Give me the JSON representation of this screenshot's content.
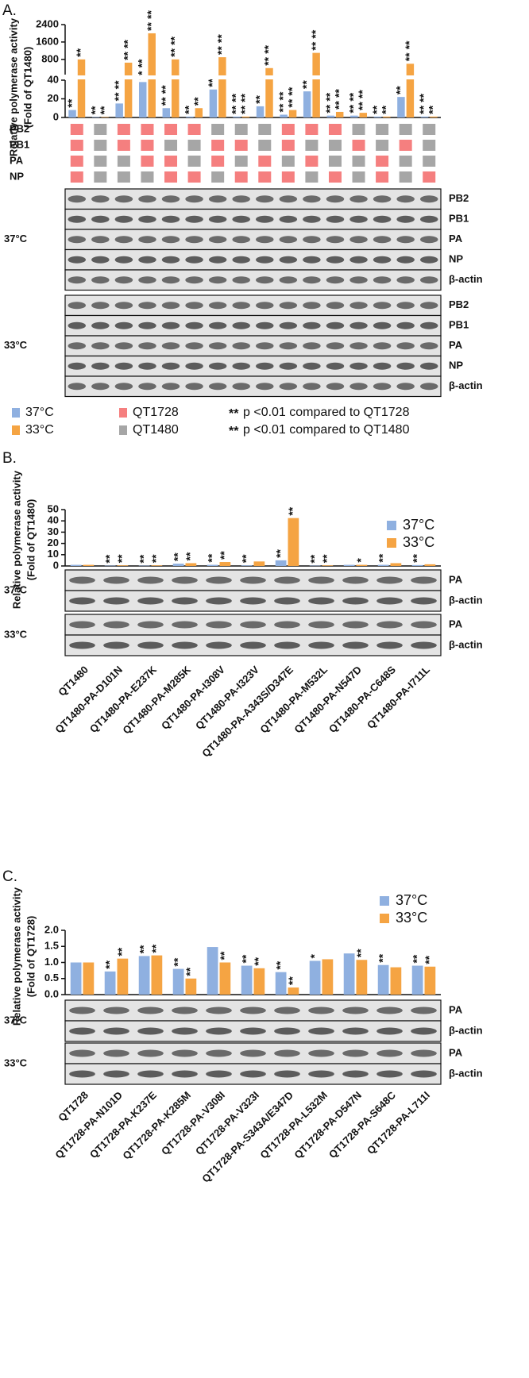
{
  "chart_data": [
    {
      "type": "bar",
      "panel_label": "A.",
      "ylabel": [
        "Relative polymerase activity",
        "(Fold of QT1480)"
      ],
      "ylim": [
        0,
        2400
      ],
      "ybreak": [
        40,
        100
      ],
      "yticks": [
        0,
        20,
        40,
        800,
        1600,
        2400
      ],
      "series": [
        {
          "name": "37°C",
          "color": "#8fb0e0",
          "values": [
            8,
            0.5,
            15,
            38,
            10,
            1,
            30,
            1,
            12,
            3,
            28,
            2,
            2,
            1,
            22,
            1
          ],
          "sig_qt1480": [
            "**",
            null,
            "**",
            "**",
            "**",
            "**",
            "**",
            "**",
            "**",
            "**",
            "**",
            "**",
            "**",
            null,
            "**",
            "**"
          ],
          "sig_qt1728": [
            null,
            "**",
            "**",
            "**",
            "**",
            null,
            null,
            "**",
            null,
            "**",
            null,
            "**",
            "**",
            "**",
            null,
            "**"
          ]
        },
        {
          "name": "33°C",
          "color": "#f5a443",
          "values": [
            800,
            0.5,
            650,
            2000,
            800,
            10,
            900,
            1,
            400,
            8,
            1100,
            6,
            5,
            1,
            600,
            1
          ],
          "sig_qt1480": [
            "**",
            null,
            "**",
            "**",
            "**",
            null,
            "**",
            "**",
            "**",
            "**",
            "**",
            "**",
            "**",
            null,
            "**",
            null
          ],
          "sig_qt1728": [
            null,
            "**",
            "**",
            "**",
            "**",
            "**",
            "**",
            "**",
            "**",
            "**",
            "**",
            "**",
            "**",
            "**",
            "**",
            "**"
          ]
        }
      ],
      "origins": [
        {
          "name": "QT1728",
          "color": "#f57f7f"
        },
        {
          "name": "QT1480",
          "color": "#a6a6a6"
        }
      ],
      "segments": [
        "PB2",
        "PB1",
        "PA",
        "NP"
      ],
      "segment_matrix": [
        [
          "QT1728",
          "QT1480",
          "QT1728",
          "QT1728",
          "QT1728",
          "QT1728",
          "QT1480",
          "QT1480",
          "QT1480",
          "QT1728",
          "QT1728",
          "QT1728",
          "QT1480",
          "QT1480",
          "QT1480",
          "QT1480"
        ],
        [
          "QT1728",
          "QT1480",
          "QT1728",
          "QT1728",
          "QT1480",
          "QT1480",
          "QT1728",
          "QT1728",
          "QT1480",
          "QT1728",
          "QT1480",
          "QT1480",
          "QT1728",
          "QT1480",
          "QT1728",
          "QT1480"
        ],
        [
          "QT1728",
          "QT1480",
          "QT1480",
          "QT1728",
          "QT1728",
          "QT1480",
          "QT1728",
          "QT1480",
          "QT1728",
          "QT1480",
          "QT1728",
          "QT1480",
          "QT1480",
          "QT1728",
          "QT1480",
          "QT1480"
        ],
        [
          "QT1728",
          "QT1480",
          "QT1480",
          "QT1480",
          "QT1728",
          "QT1728",
          "QT1480",
          "QT1728",
          "QT1728",
          "QT1728",
          "QT1480",
          "QT1728",
          "QT1480",
          "QT1728",
          "QT1480",
          "QT1728"
        ]
      ],
      "significance": [
        {
          "symbol": "**",
          "color": "#f57f7f",
          "label": "p <0.01 compared to QT1728"
        },
        {
          "symbol": "**",
          "color": "#222222",
          "label": "p <0.01 compared to QT1480"
        }
      ],
      "blots": [
        {
          "temperature": "37°C",
          "rows": [
            "PB2",
            "PB1",
            "PA",
            "NP",
            "β-actin"
          ]
        },
        {
          "temperature": "33°C",
          "rows": [
            "PB2",
            "PB1",
            "PA",
            "NP",
            "β-actin"
          ]
        }
      ]
    },
    {
      "type": "bar",
      "panel_label": "B.",
      "ylabel": [
        "Relative polymerase activity",
        "(Fold of QT1480)"
      ],
      "ylim": [
        0,
        50
      ],
      "yticks": [
        0,
        10,
        20,
        30,
        40,
        50
      ],
      "categories": [
        "QT1480",
        "QT1480-PA-D101N",
        "QT1480-PA-E237K",
        "QT1480-PA-M285K",
        "QT1480-PA-I308V",
        "QT1480-PA-I323V",
        "QT1480-PA-A343S/D347E",
        "QT1480-PA-M532L",
        "QT1480-PA-N547D",
        "QT1480-PA-C648S",
        "QT1480-PA-I711L"
      ],
      "series": [
        {
          "name": "37°C",
          "color": "#8fb0e0",
          "values": [
            1,
            0.3,
            0.3,
            2,
            1,
            0.5,
            5,
            0.3,
            1,
            1,
            0.8
          ],
          "annotations": [
            null,
            "**",
            "**",
            "**",
            "**",
            "**",
            "**",
            "**",
            null,
            "**",
            "**"
          ]
        },
        {
          "name": "33°C",
          "color": "#f5a443",
          "values": [
            1,
            0.5,
            0.5,
            2.5,
            3.5,
            4,
            42.5,
            0.5,
            1,
            2.5,
            1.5
          ],
          "annotations": [
            null,
            "**",
            "**",
            "**",
            "**",
            null,
            "**",
            "**",
            "*",
            null,
            null
          ]
        }
      ],
      "blots": [
        {
          "temperature": "37°C",
          "rows": [
            "PA",
            "β-actin"
          ]
        },
        {
          "temperature": "33°C",
          "rows": [
            "PA",
            "β-actin"
          ]
        }
      ]
    },
    {
      "type": "bar",
      "panel_label": "C.",
      "ylabel": [
        "Relative polymerase activity",
        "(Fold of QT1728)"
      ],
      "ylim": [
        0,
        2
      ],
      "yticks": [
        {
          "value": 0,
          "label": "0.0"
        },
        0.5,
        {
          "value": 1,
          "label": "1.0"
        },
        1.5,
        {
          "value": 2,
          "label": "2.0"
        }
      ],
      "categories": [
        "QT1728",
        "QT1728-PA-N101D",
        "QT1728-PA-K237E",
        "QT1728-PA-K285M",
        "QT1728-PA-V308I",
        "QT1728-PA-V323I",
        "QT1728-PA-S343A/E347D",
        "QT1728-PA-L532M",
        "QT1728-PA-D547N",
        "QT1728-PA-S648C",
        "QT1728-PA-L711I"
      ],
      "series": [
        {
          "name": "37°C",
          "color": "#8fb0e0",
          "values": [
            1.0,
            0.72,
            1.2,
            0.8,
            1.48,
            0.9,
            0.7,
            1.05,
            1.28,
            0.92,
            0.9
          ],
          "annotations": [
            null,
            "**",
            "**",
            "**",
            null,
            "**",
            "**",
            "*",
            null,
            "**",
            "**"
          ]
        },
        {
          "name": "33°C",
          "color": "#f5a443",
          "values": [
            1.0,
            1.12,
            1.22,
            0.5,
            1.0,
            0.82,
            0.22,
            1.1,
            1.08,
            0.85,
            0.87
          ],
          "annotations": [
            null,
            "**",
            "**",
            "**",
            "**",
            "**",
            "**",
            null,
            "**",
            null,
            "**"
          ]
        }
      ],
      "blots": [
        {
          "temperature": "37°C",
          "rows": [
            "PA",
            "β-actin"
          ]
        },
        {
          "temperature": "33°C",
          "rows": [
            "PA",
            "β-actin"
          ]
        }
      ]
    }
  ]
}
